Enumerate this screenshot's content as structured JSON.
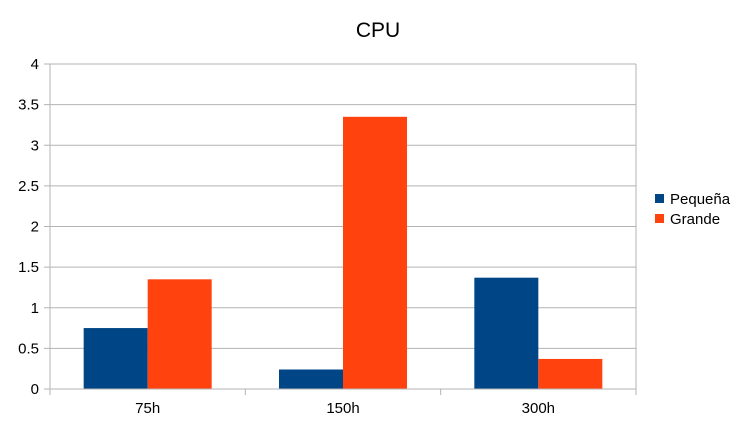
{
  "chart_data": {
    "type": "bar",
    "title": "CPU",
    "categories": [
      "75h",
      "150h",
      "300h"
    ],
    "series": [
      {
        "name": "Pequeña",
        "color": "#004586",
        "values": [
          0.75,
          0.24,
          1.37
        ]
      },
      {
        "name": "Grande",
        "color": "#ff420e",
        "values": [
          1.35,
          3.35,
          0.37
        ]
      }
    ],
    "ylim": [
      0,
      4
    ],
    "yticks": [
      "0",
      "0.5",
      "1",
      "1.5",
      "2",
      "2.5",
      "3",
      "3.5",
      "4"
    ],
    "grid": true,
    "legend_position": "right"
  }
}
